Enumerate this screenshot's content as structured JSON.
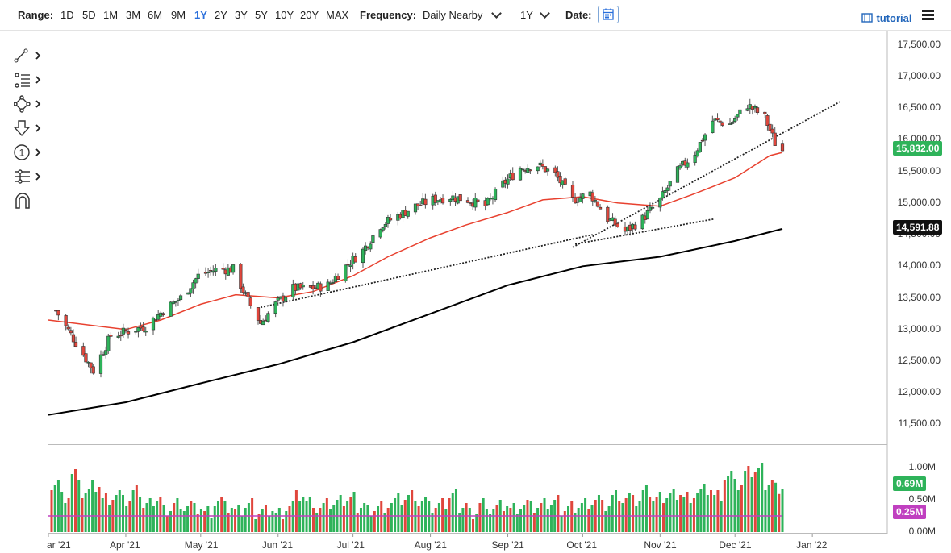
{
  "toolbar": {
    "range_label": "Range:",
    "ranges": [
      "1D",
      "5D",
      "1M",
      "3M",
      "6M",
      "9M",
      "1Y",
      "2Y",
      "3Y",
      "5Y",
      "10Y",
      "20Y",
      "MAX"
    ],
    "active_range": "1Y",
    "frequency_label": "Frequency:",
    "frequency_value": "Daily Nearby",
    "period_value": "1Y",
    "date_label": "Date:",
    "tutorial_label": "tutorial",
    "icons": [
      "calendar-icon",
      "film-icon",
      "menu-icon"
    ]
  },
  "drawing_tools": [
    "trendline-icon",
    "fibonacci-icon",
    "shapes-icon",
    "arrow-icon",
    "count-icon",
    "measure-icon",
    "magnet-icon"
  ],
  "colors": {
    "up": "#2eb35a",
    "down": "#e0463c",
    "ma50": "#e8412f",
    "ma200": "#000000",
    "vol_avg": "#c040c0",
    "price_tag": "#2eb35a"
  },
  "price_axis": {
    "ticks": [
      "17,500.00",
      "17,000.00",
      "16,500.00",
      "16,000.00",
      "15,500.00",
      "15,000.00",
      "14,500.00",
      "14,000.00",
      "13,500.00",
      "13,000.00",
      "12,500.00",
      "12,000.00",
      "11,500.00"
    ],
    "last_price": "15,832.00",
    "ma200_value": "14,591.88"
  },
  "volume_axis": {
    "ticks": [
      "1.00M",
      "0.50M",
      "0.00M"
    ],
    "last_volume": "0.69M",
    "avg_volume": "0.25M"
  },
  "time_axis": {
    "labels": [
      "ar '21",
      "Apr '21",
      "May '21",
      "Jun '21",
      "Jul '21",
      "Aug '21",
      "Sep '21",
      "Oct '21",
      "Nov '21",
      "Dec '21",
      "Jan '22"
    ]
  },
  "chart_data": {
    "type": "candlestick",
    "x_range": [
      "2021-03-01",
      "2022-01-31"
    ],
    "y_range": [
      11200,
      17700
    ],
    "series": [
      {
        "name": "",
        "type": "candlestick",
        "points": [
          {
            "x": "2021-03-04",
            "y": 13300
          },
          {
            "x": "2021-03-19",
            "y": 12350
          },
          {
            "x": "2021-03-26",
            "y": 12900
          },
          {
            "x": "2021-04-09",
            "y": 13050
          },
          {
            "x": "2021-04-16",
            "y": 13300
          },
          {
            "x": "2021-04-23",
            "y": 13500
          },
          {
            "x": "2021-04-30",
            "y": 13850
          },
          {
            "x": "2021-05-07",
            "y": 13950
          },
          {
            "x": "2021-05-14",
            "y": 13950
          },
          {
            "x": "2021-05-20",
            "y": 13450
          },
          {
            "x": "2021-05-25",
            "y": 13100
          },
          {
            "x": "2021-05-31",
            "y": 13400
          },
          {
            "x": "2021-06-07",
            "y": 13650
          },
          {
            "x": "2021-06-14",
            "y": 13650
          },
          {
            "x": "2021-06-21",
            "y": 13700
          },
          {
            "x": "2021-06-28",
            "y": 14000
          },
          {
            "x": "2021-07-05",
            "y": 14250
          },
          {
            "x": "2021-07-12",
            "y": 14650
          },
          {
            "x": "2021-07-19",
            "y": 14800
          },
          {
            "x": "2021-07-26",
            "y": 14950
          },
          {
            "x": "2021-08-02",
            "y": 15050
          },
          {
            "x": "2021-08-09",
            "y": 15100
          },
          {
            "x": "2021-08-16",
            "y": 15050
          },
          {
            "x": "2021-08-23",
            "y": 14950
          },
          {
            "x": "2021-08-30",
            "y": 15300
          },
          {
            "x": "2021-09-06",
            "y": 15550
          },
          {
            "x": "2021-09-13",
            "y": 15600
          },
          {
            "x": "2021-09-20",
            "y": 15450
          },
          {
            "x": "2021-09-27",
            "y": 15050
          },
          {
            "x": "2021-10-04",
            "y": 15150
          },
          {
            "x": "2021-10-11",
            "y": 14750
          },
          {
            "x": "2021-10-18",
            "y": 14550
          },
          {
            "x": "2021-10-25",
            "y": 14750
          },
          {
            "x": "2021-11-01",
            "y": 15050
          },
          {
            "x": "2021-11-08",
            "y": 15500
          },
          {
            "x": "2021-11-15",
            "y": 15800
          },
          {
            "x": "2021-11-22",
            "y": 16300
          },
          {
            "x": "2021-11-29",
            "y": 16250
          },
          {
            "x": "2021-12-06",
            "y": 16550
          },
          {
            "x": "2021-12-13",
            "y": 16350
          },
          {
            "x": "2021-12-17",
            "y": 15950
          },
          {
            "x": "2021-12-20",
            "y": 15832
          }
        ]
      },
      {
        "name": "",
        "type": "line",
        "points": [
          {
            "x": "2021-03-01",
            "y": 13150
          },
          {
            "x": "2021-04-01",
            "y": 13000
          },
          {
            "x": "2021-04-15",
            "y": 13150
          },
          {
            "x": "2021-05-01",
            "y": 13400
          },
          {
            "x": "2021-05-15",
            "y": 13550
          },
          {
            "x": "2021-06-01",
            "y": 13500
          },
          {
            "x": "2021-06-15",
            "y": 13600
          },
          {
            "x": "2021-07-01",
            "y": 13850
          },
          {
            "x": "2021-07-15",
            "y": 14150
          },
          {
            "x": "2021-08-01",
            "y": 14450
          },
          {
            "x": "2021-08-15",
            "y": 14650
          },
          {
            "x": "2021-09-01",
            "y": 14850
          },
          {
            "x": "2021-09-15",
            "y": 15050
          },
          {
            "x": "2021-10-01",
            "y": 15100
          },
          {
            "x": "2021-10-15",
            "y": 15000
          },
          {
            "x": "2021-11-01",
            "y": 14950
          },
          {
            "x": "2021-11-15",
            "y": 15150
          },
          {
            "x": "2021-12-01",
            "y": 15400
          },
          {
            "x": "2021-12-15",
            "y": 15750
          },
          {
            "x": "2021-12-20",
            "y": 15800
          }
        ]
      },
      {
        "name": "",
        "type": "line",
        "points": [
          {
            "x": "2021-03-01",
            "y": 11650
          },
          {
            "x": "2021-04-01",
            "y": 11850
          },
          {
            "x": "2021-05-01",
            "y": 12150
          },
          {
            "x": "2021-06-01",
            "y": 12450
          },
          {
            "x": "2021-07-01",
            "y": 12800
          },
          {
            "x": "2021-08-01",
            "y": 13250
          },
          {
            "x": "2021-09-01",
            "y": 13700
          },
          {
            "x": "2021-10-01",
            "y": 14000
          },
          {
            "x": "2021-11-01",
            "y": 14150
          },
          {
            "x": "2021-12-01",
            "y": 14400
          },
          {
            "x": "2021-12-20",
            "y": 14592
          }
        ]
      }
    ],
    "volume": {
      "values": [
        0.75,
        0.55,
        0.9,
        0.6,
        0.7,
        0.5,
        0.55,
        0.45,
        0.6,
        0.4,
        0.5,
        0.35,
        0.45,
        0.4,
        0.35,
        0.3,
        0.45,
        0.35,
        0.3,
        0.4,
        0.3,
        0.35,
        0.3,
        0.4,
        0.55,
        0.45,
        0.35,
        0.4,
        0.45,
        0.5,
        0.4,
        0.35,
        0.4,
        0.45,
        0.5,
        0.55,
        0.45,
        0.35,
        0.4,
        0.55,
        0.4,
        0.3,
        0.45,
        0.35,
        0.4,
        0.35,
        0.4,
        0.35,
        0.4,
        0.45,
        0.35,
        0.4,
        0.45,
        0.5,
        0.4,
        0.55,
        0.5,
        0.45,
        0.6,
        0.5,
        0.55,
        0.6,
        0.55,
        0.6,
        0.65,
        0.55,
        0.85,
        0.7,
        0.9,
        0.95,
        0.75,
        0.69
      ]
    }
  }
}
